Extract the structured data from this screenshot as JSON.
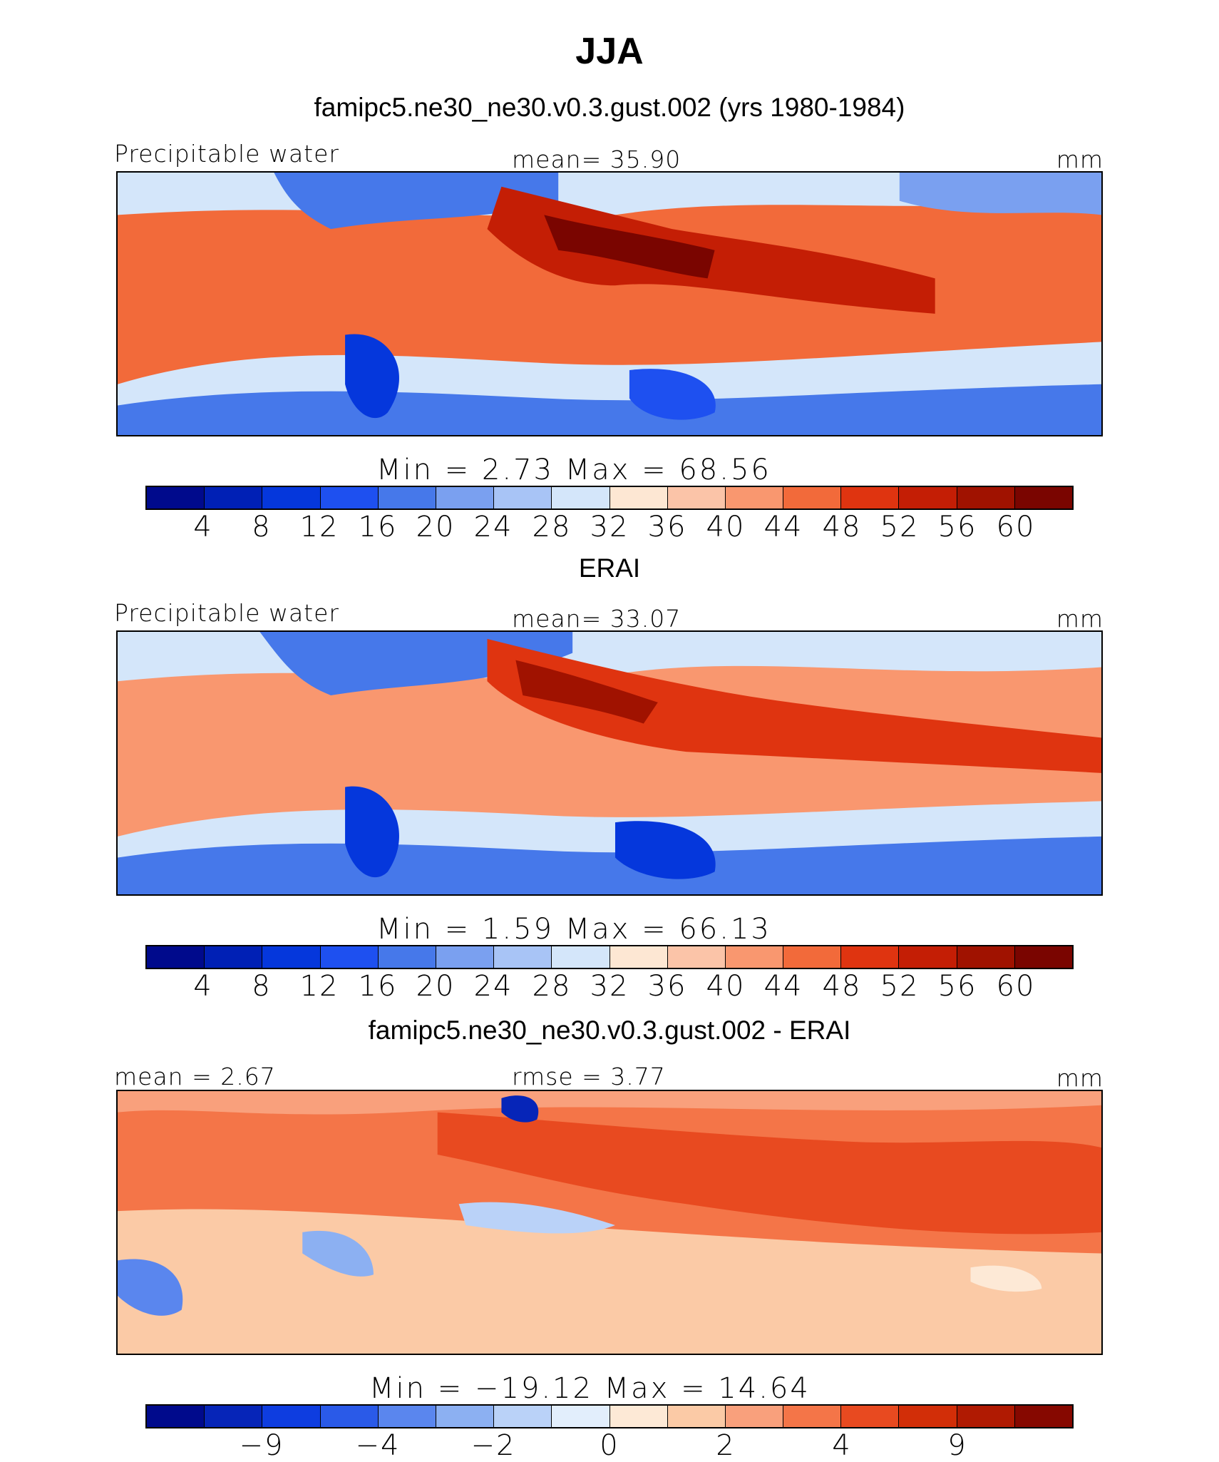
{
  "figure": {
    "title": "JJA"
  },
  "colors": {
    "abs_levels": [
      "#000a8c",
      "#0020b5",
      "#0537dc",
      "#1e50f0",
      "#4678ea",
      "#7aa0f0",
      "#a8c4f6",
      "#d4e6fa",
      "#fde7d3",
      "#fbc4a8",
      "#f9976f",
      "#f26a3a",
      "#df3410",
      "#c41e05",
      "#a01200",
      "#7a0500"
    ],
    "diff_levels": [
      "#000a8c",
      "#0625b8",
      "#0e3de0",
      "#2a5ae8",
      "#5a86ee",
      "#8cb0f2",
      "#bad2f8",
      "#e2eefc",
      "#fde9d6",
      "#fbcaa6",
      "#f9a07c",
      "#f47548",
      "#e84a20",
      "#d22e08",
      "#b01a02",
      "#860800"
    ]
  },
  "panels": [
    {
      "title": "famipc5.ne30_ne30.v0.3.gust.002 (yrs 1980-1984)",
      "left_label": "Precipitable water",
      "center_label": "mean=   35.90",
      "units": "mm",
      "minmax": "Min  =     2.73  Max  =    68.56",
      "ticks": [
        "4",
        "8",
        "12",
        "16",
        "20",
        "24",
        "28",
        "32",
        "36",
        "40",
        "44",
        "48",
        "52",
        "56",
        "60"
      ]
    },
    {
      "title": "ERAI",
      "left_label": "Precipitable water",
      "center_label": "mean=   33.07",
      "units": "mm",
      "minmax": "Min  =     1.59  Max  =    66.13",
      "ticks": [
        "4",
        "8",
        "12",
        "16",
        "20",
        "24",
        "28",
        "32",
        "36",
        "40",
        "44",
        "48",
        "52",
        "56",
        "60"
      ]
    },
    {
      "title": "famipc5.ne30_ne30.v0.3.gust.002 - ERAI",
      "left_label": "mean  =    2.67",
      "center_label": "rmse  =    3.77",
      "units": "mm",
      "minmax": "Min  =  −19.12  Max  =    14.64",
      "ticks": [
        "−9",
        "",
        "−4",
        "",
        "−2",
        "",
        "0",
        "",
        "2",
        "",
        "4",
        "",
        "9",
        "",
        ""
      ]
    }
  ]
}
